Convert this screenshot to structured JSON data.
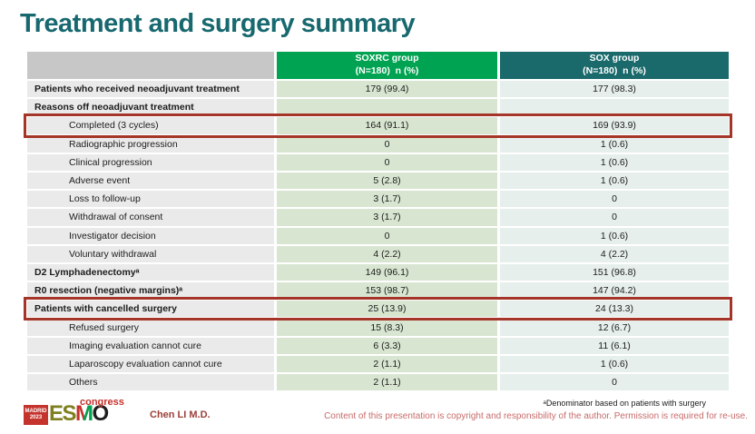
{
  "title": "Treatment and surgery summary",
  "colors": {
    "title-teal": "#17686f",
    "header-green": "#00a351",
    "header-teal": "#1a696b",
    "highlight-red": "#a53528",
    "label-cell": "#eaeaea",
    "soxrc-cell": "#d8e6d1",
    "sox-cell": "#e6efec",
    "corner-cell": "#c7c7c7",
    "footer-red": "#c96a6a",
    "author-red": "#9b3e38"
  },
  "table": {
    "columns": [
      {
        "label": "SOXRC group\n(N=180)  n (%)"
      },
      {
        "label": "SOX group\n(N=180)  n (%)"
      }
    ],
    "rows": [
      {
        "label": "Patients who received neoadjuvant treatment",
        "soxrc": "179 (99.4)",
        "sox": "177 (98.3)",
        "bold": true,
        "indent": false,
        "highlight": false
      },
      {
        "label": "Reasons off neoadjuvant treatment",
        "soxrc": "",
        "sox": "",
        "bold": true,
        "indent": false,
        "highlight": false
      },
      {
        "label": "Completed (3 cycles)",
        "soxrc": "164 (91.1)",
        "sox": "169 (93.9)",
        "bold": false,
        "indent": true,
        "highlight": true
      },
      {
        "label": "Radiographic progression",
        "soxrc": "0",
        "sox": "1 (0.6)",
        "bold": false,
        "indent": true,
        "highlight": false
      },
      {
        "label": "Clinical progression",
        "soxrc": "0",
        "sox": "1 (0.6)",
        "bold": false,
        "indent": true,
        "highlight": false
      },
      {
        "label": "Adverse event",
        "soxrc": "5 (2.8)",
        "sox": "1 (0.6)",
        "bold": false,
        "indent": true,
        "highlight": false
      },
      {
        "label": "Loss to follow-up",
        "soxrc": "3 (1.7)",
        "sox": "0",
        "bold": false,
        "indent": true,
        "highlight": false
      },
      {
        "label": "Withdrawal of consent",
        "soxrc": "3 (1.7)",
        "sox": "0",
        "bold": false,
        "indent": true,
        "highlight": false
      },
      {
        "label": "Investigator decision",
        "soxrc": "0",
        "sox": "1 (0.6)",
        "bold": false,
        "indent": true,
        "highlight": false
      },
      {
        "label": "Voluntary withdrawal",
        "soxrc": "4 (2.2)",
        "sox": "4 (2.2)",
        "bold": false,
        "indent": true,
        "highlight": false
      },
      {
        "label": "D2 Lymphadenectomyᵃ",
        "soxrc": "149 (96.1)",
        "sox": "151 (96.8)",
        "bold": true,
        "indent": false,
        "highlight": false
      },
      {
        "label": "R0 resection (negative margins)ᵃ",
        "soxrc": "153 (98.7)",
        "sox": "147 (94.2)",
        "bold": true,
        "indent": false,
        "highlight": false
      },
      {
        "label": "Patients with cancelled surgery",
        "soxrc": "25 (13.9)",
        "sox": "24 (13.3)",
        "bold": true,
        "indent": false,
        "highlight": true
      },
      {
        "label": "Refused surgery",
        "soxrc": "15 (8.3)",
        "sox": "12 (6.7)",
        "bold": false,
        "indent": true,
        "highlight": false
      },
      {
        "label": "Imaging evaluation cannot cure",
        "soxrc": "6 (3.3)",
        "sox": "11 (6.1)",
        "bold": false,
        "indent": true,
        "highlight": false
      },
      {
        "label": "Laparoscopy evaluation cannot cure",
        "soxrc": "2 (1.1)",
        "sox": "1 (0.6)",
        "bold": false,
        "indent": true,
        "highlight": false
      },
      {
        "label": "Others",
        "soxrc": "2 (1.1)",
        "sox": "0",
        "bold": false,
        "indent": true,
        "highlight": false
      }
    ]
  },
  "footer": {
    "footnote": "ᵃDenominator based on patients with surgery",
    "author": "Chen LI M.D.",
    "copyright": "Content of this presentation is copyright and responsibility of the author. Permission is required for re-use.",
    "logo": {
      "city": "MADRID",
      "year": "2023",
      "letters": [
        "E",
        "S",
        "M",
        "O"
      ],
      "congress": "congress"
    }
  }
}
